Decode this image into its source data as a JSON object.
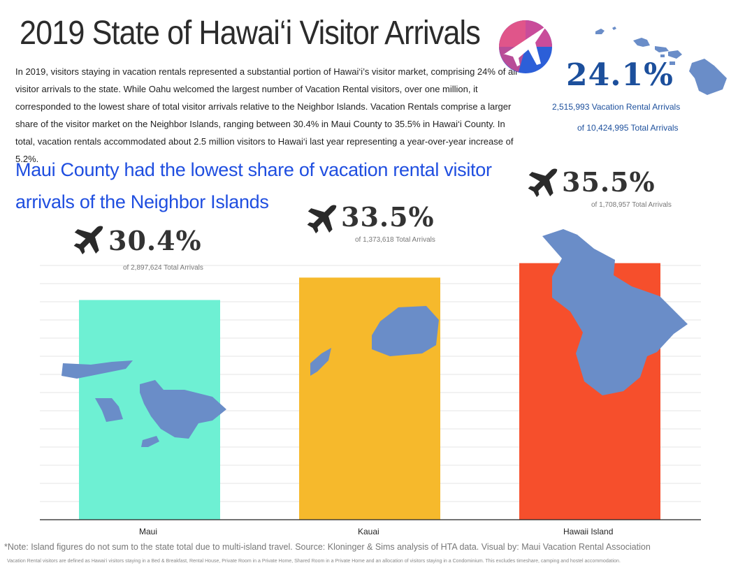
{
  "title": "2019 State of Hawai‘i Visitor Arrivals",
  "intro": "In 2019, visitors staying in vacation rentals represented a substantial portion of Hawai‘i’s visitor market, comprising 24% of all visitor arrivals to the state. While Oahu welcomed the largest number of Vacation Rental visitors, over one million, it corresponded to the lowest share of total visitor arrivals relative to the Neighbor Islands. Vacation Rentals comprise a larger share of the visitor market on the Neighbor Islands, ranging between 30.4% in Maui County to 35.5% in Hawai‘i County. In total, vacation rentals accommodated about 2.5 million visitors to Hawai‘i last year representing a year-over-year increase of 5.2%.",
  "subtitle": "Maui County had the lowest share of vacation rental visitor arrivals of the Neighbor Islands",
  "state": {
    "pct": "24.1%",
    "line1": "2,515,993 Vacation Rental Arrivals",
    "line2": "of 10,424,995 Total Arrivals"
  },
  "icons": {
    "logo": "airplane-logo-icon",
    "state_map": "hawaii-islands-map-icon",
    "plane": "airplane-icon"
  },
  "colors": {
    "maui": "#6ef0d3",
    "kauai": "#f6b92c",
    "hawaii": "#f64f2c",
    "island": "#6a8dc8",
    "accent_blue": "#1f4ee0",
    "state_blue": "#1c4f9c"
  },
  "chart_data": {
    "type": "bar",
    "categories": [
      "Maui",
      "Kauai",
      "Hawaii Island"
    ],
    "values": [
      30.4,
      33.5,
      35.5
    ],
    "value_labels": [
      "30.4%",
      "33.5%",
      "35.5%"
    ],
    "total_labels": [
      "of 2,897,624 Total Arrivals",
      "of 1,373,618 Total Arrivals",
      "of 1,708,957 Total Arrivals"
    ],
    "colors": [
      "#6ef0d3",
      "#f6b92c",
      "#f64f2c"
    ],
    "ylim": [
      0,
      37.5
    ],
    "grid": true,
    "xlabel": "",
    "ylabel": ""
  },
  "footer": {
    "note": "*Note: Island figures do not sum to the state total due to multi-island travel. Source: Kloninger & Sims analysis of HTA data.   Visual by: Maui Vacation Rental Association",
    "fine": "Vacation Rental visitors are defined as Hawai‘i visitors staying in a Bed & Breakfast, Rental House, Private Room in a Private Home, Shared Room in a Private Home and an allocation of visitors staying in a Condominium. This excludes timeshare, camping and hostel accommodation."
  }
}
